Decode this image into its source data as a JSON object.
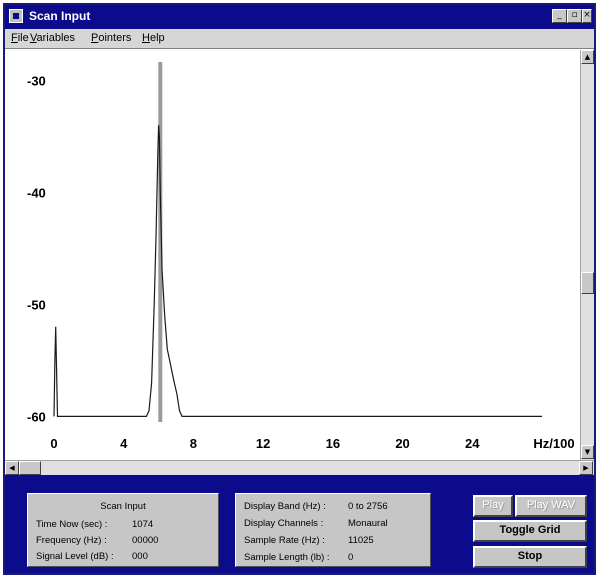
{
  "window": {
    "title": "Scan Input"
  },
  "menu": [
    "File",
    "Variables",
    "Pointers",
    "Help"
  ],
  "controls": {
    "min": "_",
    "max": "▫",
    "close": "×"
  },
  "chart_data": {
    "type": "line",
    "xlabel": "Hz/100",
    "x_ticks": [
      0,
      4,
      8,
      12,
      16,
      20,
      24
    ],
    "y_ticks": [
      -30,
      -40,
      -50,
      -60
    ],
    "xlim": [
      0,
      28
    ],
    "ylim": [
      -60.5,
      -28
    ],
    "marker_x": 6.1,
    "series": [
      {
        "points": [
          [
            0,
            -60
          ],
          [
            0.05,
            -55
          ],
          [
            0.1,
            -52
          ],
          [
            0.15,
            -56
          ],
          [
            0.2,
            -60
          ],
          [
            5.3,
            -60
          ],
          [
            5.45,
            -59.5
          ],
          [
            5.6,
            -57
          ],
          [
            5.75,
            -50
          ],
          [
            5.85,
            -44
          ],
          [
            5.95,
            -37
          ],
          [
            6.0,
            -34
          ],
          [
            6.05,
            -35
          ],
          [
            6.1,
            -40
          ],
          [
            6.2,
            -47
          ],
          [
            6.35,
            -51
          ],
          [
            6.5,
            -54
          ],
          [
            6.7,
            -55.5
          ],
          [
            6.9,
            -57
          ],
          [
            7.05,
            -58
          ],
          [
            7.2,
            -59.5
          ],
          [
            7.35,
            -60
          ],
          [
            28,
            -60
          ]
        ]
      }
    ]
  },
  "scan_panel": {
    "title": "Scan Input",
    "rows": [
      {
        "label": "Time Now (sec) :",
        "value": "1074"
      },
      {
        "label": "Frequency (Hz) :",
        "value": "00000"
      },
      {
        "label": "Signal Level (dB) :",
        "value": "000"
      }
    ]
  },
  "display_panel": {
    "rows": [
      {
        "label": "Display Band (Hz) :",
        "value": "0 to 2756"
      },
      {
        "label": "Display Channels :",
        "value": "Monaural"
      },
      {
        "label": "Sample Rate (Hz) :",
        "value": "11025"
      },
      {
        "label": "Sample Length (lb) :",
        "value": "0"
      }
    ]
  },
  "buttons": {
    "play": "Play",
    "play_wav": "Play WAV",
    "toggle_grid": "Toggle Grid",
    "stop": "Stop"
  }
}
